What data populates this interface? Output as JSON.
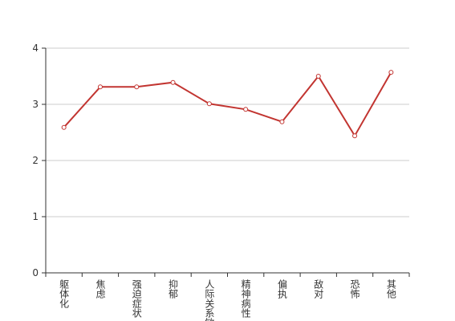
{
  "chart_data": {
    "type": "line",
    "categories": [
      "躯体化",
      "焦虑",
      "强迫症状",
      "抑郁",
      "人际关系敏感",
      "精神病性",
      "偏执",
      "敌对",
      "恐怖",
      "其他"
    ],
    "values": [
      2.59,
      3.31,
      3.31,
      3.39,
      3.01,
      2.91,
      2.69,
      3.5,
      2.44,
      3.57
    ],
    "color": "#c23531",
    "ylim": [
      0,
      4
    ],
    "yticks": [
      0,
      1,
      2,
      3,
      4
    ],
    "grid": true
  }
}
